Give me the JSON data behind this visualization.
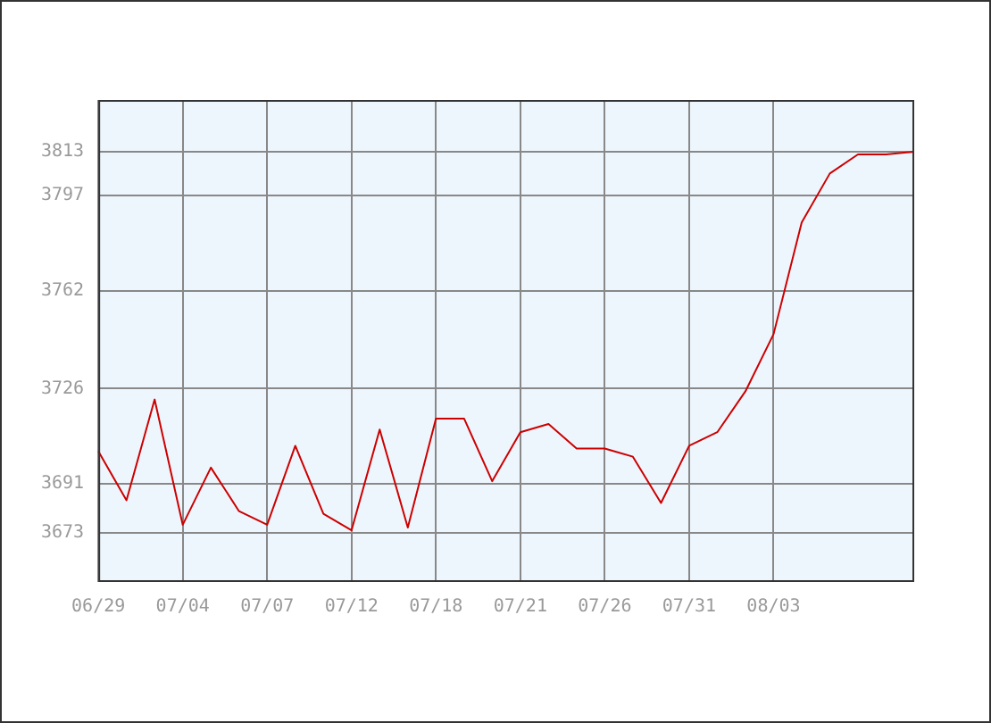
{
  "chart_data": {
    "type": "line",
    "categories": [
      "06/29",
      null,
      null,
      "07/04",
      null,
      null,
      "07/07",
      null,
      null,
      "07/12",
      null,
      null,
      "07/18",
      null,
      null,
      "07/21",
      null,
      null,
      "07/26",
      null,
      null,
      "07/31",
      null,
      null,
      "08/03",
      null,
      null,
      null,
      null,
      null
    ],
    "series": [
      {
        "color": "#cc0000",
        "values": [
          3703,
          3685,
          3722,
          3676,
          3697,
          3681,
          3676,
          3705,
          3680,
          3674,
          3711,
          3675,
          3715,
          3715,
          3692,
          3710,
          3713,
          3704,
          3704,
          3701,
          3684,
          3705,
          3710,
          3725,
          3746,
          3787,
          3805,
          3812,
          3812,
          3813
        ]
      }
    ],
    "ylim": [
      3655,
      3832
    ],
    "yticks": [
      3673,
      3691,
      3726,
      3762,
      3797,
      3813
    ],
    "grid": true,
    "legend": false,
    "marker": "none",
    "line_style": "solid"
  }
}
